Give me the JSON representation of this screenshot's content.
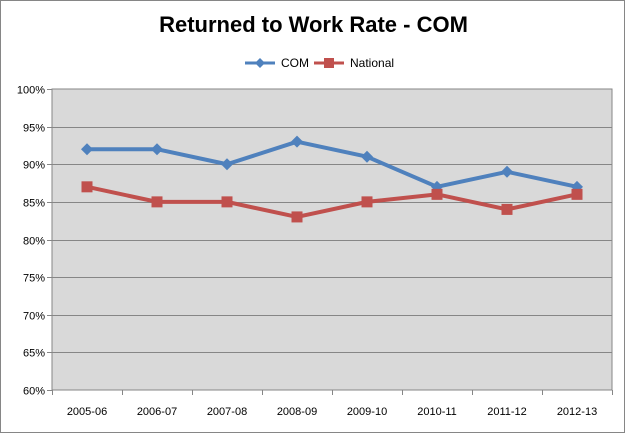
{
  "chart_data": {
    "type": "line",
    "title": "Returned to Work Rate - COM",
    "categories": [
      "2005-06",
      "2006-07",
      "2007-08",
      "2008-09",
      "2009-10",
      "2010-11",
      "2011-12",
      "2012-13"
    ],
    "series": [
      {
        "name": "COM",
        "values": [
          92,
          92,
          90,
          93,
          91,
          87,
          89,
          87
        ],
        "color": "#4f81bd",
        "marker": "diamond"
      },
      {
        "name": "National",
        "values": [
          87,
          85,
          85,
          83,
          85,
          86,
          84,
          86
        ],
        "color": "#c0504d",
        "marker": "square"
      }
    ],
    "ylim": [
      60,
      100
    ],
    "yticks": [
      "60%",
      "65%",
      "70%",
      "75%",
      "80%",
      "85%",
      "90%",
      "95%",
      "100%"
    ],
    "ytick_values": [
      60,
      65,
      70,
      75,
      80,
      85,
      90,
      95,
      100
    ],
    "grid": true,
    "legend_position": "top",
    "plot_background": "#d9d9d9"
  }
}
